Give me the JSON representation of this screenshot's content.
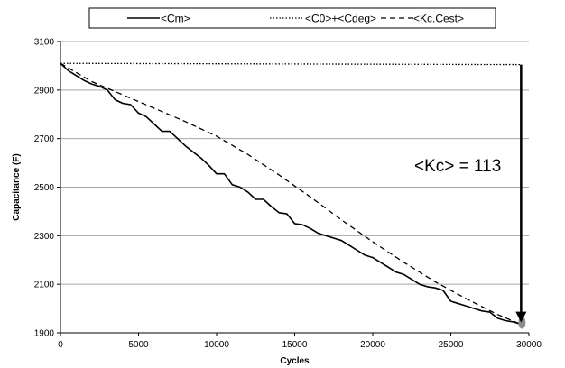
{
  "chart_data": {
    "type": "line",
    "title": "",
    "xlabel": "Cycles",
    "ylabel": "Capacitance (F)",
    "xlim": [
      0,
      30000
    ],
    "ylim": [
      1900,
      3100
    ],
    "xticks": [
      0,
      5000,
      10000,
      15000,
      20000,
      25000,
      30000
    ],
    "yticks": [
      1900,
      2100,
      2300,
      2500,
      2700,
      2900,
      3100
    ],
    "grid": "horizontal",
    "legend_position": "top",
    "annotation": "<Kc> = 113",
    "annotation_arrow": {
      "x": 29500,
      "from": 3005,
      "to": 1935
    },
    "series": [
      {
        "name": "<Cm>",
        "style": "solid",
        "color": "#000000",
        "x": [
          0,
          500,
          1000,
          1500,
          2000,
          2500,
          3000,
          3500,
          4000,
          4500,
          5000,
          5500,
          6000,
          6500,
          7000,
          7500,
          8000,
          8500,
          9000,
          9500,
          10000,
          10500,
          11000,
          11500,
          12000,
          12500,
          13000,
          13500,
          14000,
          14500,
          15000,
          15500,
          16000,
          16500,
          17000,
          17500,
          18000,
          18500,
          19000,
          19500,
          20000,
          20500,
          21000,
          21500,
          22000,
          22500,
          23000,
          23500,
          24000,
          24500,
          25000,
          25500,
          26000,
          26500,
          27000,
          27500,
          28000,
          28500,
          29000,
          29500
        ],
        "y": [
          3010,
          2980,
          2960,
          2940,
          2925,
          2915,
          2900,
          2860,
          2845,
          2840,
          2805,
          2790,
          2760,
          2730,
          2730,
          2700,
          2670,
          2645,
          2620,
          2590,
          2555,
          2555,
          2510,
          2500,
          2480,
          2450,
          2450,
          2420,
          2395,
          2390,
          2350,
          2345,
          2330,
          2310,
          2300,
          2290,
          2280,
          2260,
          2240,
          2220,
          2210,
          2190,
          2170,
          2150,
          2140,
          2120,
          2100,
          2090,
          2085,
          2075,
          2030,
          2020,
          2010,
          2000,
          1990,
          1985,
          1960,
          1950,
          1945,
          1935
        ]
      },
      {
        "name": "<C0>+<Cdeg>",
        "style": "dotted",
        "color": "#000000",
        "x": [
          0,
          29500
        ],
        "y": [
          3010,
          3005
        ]
      },
      {
        "name": "<Kc.Cest>",
        "style": "dashed",
        "color": "#000000",
        "x": [
          0,
          2000,
          4000,
          6000,
          8000,
          10000,
          12000,
          14000,
          16000,
          18000,
          20000,
          22000,
          24000,
          26000,
          28000,
          29500
        ],
        "y": [
          3010,
          2935,
          2880,
          2825,
          2770,
          2710,
          2635,
          2550,
          2460,
          2365,
          2275,
          2190,
          2110,
          2040,
          1975,
          1935
        ]
      }
    ]
  }
}
